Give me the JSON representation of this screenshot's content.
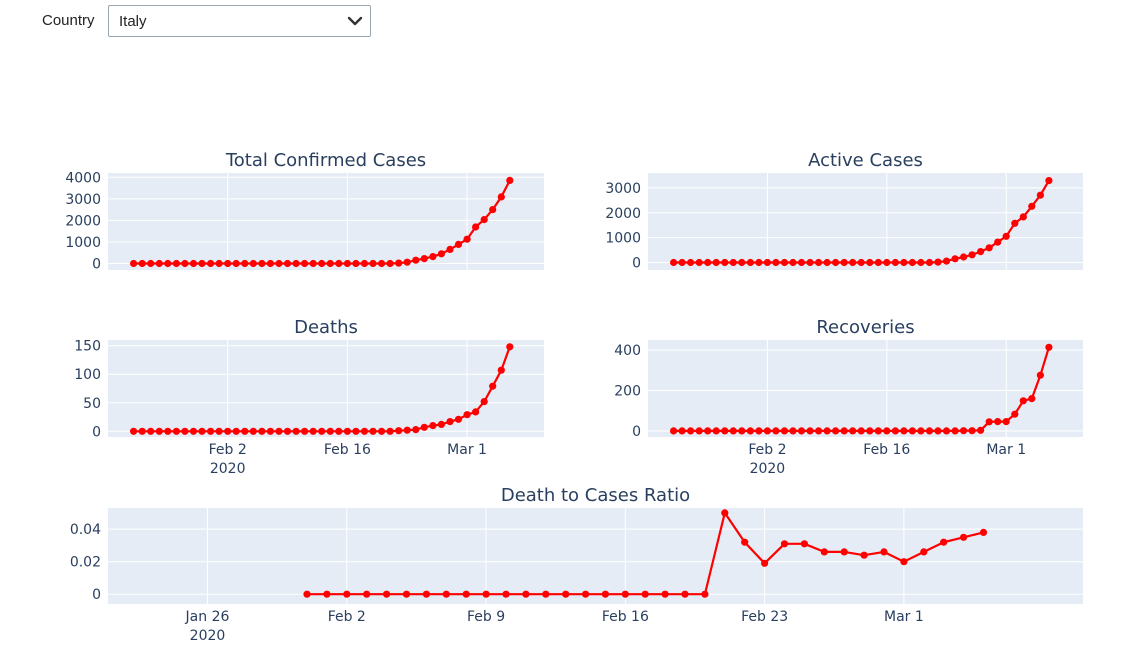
{
  "filter": {
    "label": "Country",
    "selected": "Italy"
  },
  "chart_data": [
    {
      "id": "confirmed",
      "type": "line",
      "title": "Total Confirmed Cases",
      "color": "#ff0000",
      "x_start": "2020-01-22",
      "x_range": [
        "2020-01-19",
        "2020-03-10"
      ],
      "x_ticks": [
        {
          "date": "2020-02-02",
          "label": "Feb 2",
          "sub": "2020"
        },
        {
          "date": "2020-02-16",
          "label": "Feb 16"
        },
        {
          "date": "2020-03-01",
          "label": "Mar 1"
        }
      ],
      "show_x_labels": false,
      "ylim": [
        -300,
        4200
      ],
      "y_ticks": [
        0,
        1000,
        2000,
        3000,
        4000
      ],
      "y_tick_labels": [
        "0",
        "1000",
        "2000",
        "3000",
        "4000"
      ],
      "values": [
        0,
        0,
        0,
        0,
        0,
        0,
        0,
        0,
        0,
        2,
        2,
        2,
        2,
        2,
        3,
        3,
        3,
        3,
        3,
        3,
        3,
        3,
        3,
        3,
        3,
        3,
        3,
        3,
        3,
        3,
        3,
        20,
        62,
        155,
        229,
        322,
        453,
        655,
        888,
        1128,
        1694,
        2036,
        2502,
        3089,
        3858
      ]
    },
    {
      "id": "active",
      "type": "line",
      "title": "Active Cases",
      "color": "#ff0000",
      "x_start": "2020-01-22",
      "x_range": [
        "2020-01-19",
        "2020-03-10"
      ],
      "x_ticks": [
        {
          "date": "2020-02-02",
          "label": "Feb 2",
          "sub": "2020"
        },
        {
          "date": "2020-02-16",
          "label": "Feb 16"
        },
        {
          "date": "2020-03-01",
          "label": "Mar 1"
        }
      ],
      "show_x_labels": false,
      "ylim": [
        -300,
        3600
      ],
      "y_ticks": [
        0,
        1000,
        2000,
        3000
      ],
      "y_tick_labels": [
        "0",
        "1000",
        "2000",
        "3000"
      ],
      "values": [
        0,
        0,
        0,
        0,
        0,
        0,
        0,
        0,
        0,
        2,
        2,
        2,
        2,
        2,
        3,
        3,
        3,
        3,
        3,
        3,
        3,
        3,
        3,
        3,
        3,
        3,
        3,
        3,
        3,
        3,
        3,
        19,
        59,
        150,
        221,
        311,
        438,
        593,
        821,
        1053,
        1577,
        1835,
        2263,
        2706,
        3296
      ]
    },
    {
      "id": "deaths",
      "type": "line",
      "title": "Deaths",
      "color": "#ff0000",
      "x_start": "2020-01-22",
      "x_range": [
        "2020-01-19",
        "2020-03-10"
      ],
      "x_ticks": [
        {
          "date": "2020-02-02",
          "label": "Feb 2",
          "sub": "2020"
        },
        {
          "date": "2020-02-16",
          "label": "Feb 16"
        },
        {
          "date": "2020-03-01",
          "label": "Mar 1"
        }
      ],
      "show_x_labels": true,
      "ylim": [
        -10,
        160
      ],
      "y_ticks": [
        0,
        50,
        100,
        150
      ],
      "y_tick_labels": [
        "0",
        "50",
        "100",
        "150"
      ],
      "values": [
        0,
        0,
        0,
        0,
        0,
        0,
        0,
        0,
        0,
        0,
        0,
        0,
        0,
        0,
        0,
        0,
        0,
        0,
        0,
        0,
        0,
        0,
        0,
        0,
        0,
        0,
        0,
        0,
        0,
        0,
        0,
        1,
        2,
        3,
        7,
        10,
        12,
        17,
        21,
        29,
        34,
        52,
        79,
        107,
        148
      ]
    },
    {
      "id": "recoveries",
      "type": "line",
      "title": "Recoveries",
      "color": "#ff0000",
      "x_start": "2020-01-22",
      "x_range": [
        "2020-01-19",
        "2020-03-10"
      ],
      "x_ticks": [
        {
          "date": "2020-02-02",
          "label": "Feb 2",
          "sub": "2020"
        },
        {
          "date": "2020-02-16",
          "label": "Feb 16"
        },
        {
          "date": "2020-03-01",
          "label": "Mar 1"
        }
      ],
      "show_x_labels": true,
      "ylim": [
        -30,
        450
      ],
      "y_ticks": [
        0,
        200,
        400
      ],
      "y_tick_labels": [
        "0",
        "200",
        "400"
      ],
      "values": [
        0,
        0,
        0,
        0,
        0,
        0,
        0,
        0,
        0,
        0,
        0,
        0,
        0,
        0,
        0,
        0,
        0,
        0,
        0,
        0,
        0,
        0,
        0,
        0,
        0,
        0,
        0,
        0,
        0,
        0,
        0,
        0,
        0,
        0,
        1,
        1,
        3,
        45,
        46,
        46,
        83,
        149,
        160,
        276,
        414
      ]
    },
    {
      "id": "ratio",
      "type": "line",
      "title": "Death to Cases Ratio",
      "color": "#ff0000",
      "x_start": "2020-01-31",
      "x_range": [
        "2020-01-21",
        "2020-03-10"
      ],
      "x_ticks": [
        {
          "date": "2020-01-26",
          "label": "Jan 26",
          "sub": "2020"
        },
        {
          "date": "2020-02-02",
          "label": "Feb 2"
        },
        {
          "date": "2020-02-09",
          "label": "Feb 9"
        },
        {
          "date": "2020-02-16",
          "label": "Feb 16"
        },
        {
          "date": "2020-02-23",
          "label": "Feb 23"
        },
        {
          "date": "2020-03-01",
          "label": "Mar 1"
        }
      ],
      "show_x_labels": true,
      "ylim": [
        -0.006,
        0.053
      ],
      "y_ticks": [
        0,
        0.02,
        0.04
      ],
      "y_tick_labels": [
        "0",
        "0.02",
        "0.04"
      ],
      "values": [
        0,
        0,
        0,
        0,
        0,
        0,
        0,
        0,
        0,
        0,
        0,
        0,
        0,
        0,
        0,
        0,
        0,
        0,
        0,
        0,
        0,
        0.05,
        0.032,
        0.019,
        0.031,
        0.031,
        0.026,
        0.026,
        0.024,
        0.026,
        0.02,
        0.026,
        0.032,
        0.035,
        0.038
      ]
    }
  ]
}
